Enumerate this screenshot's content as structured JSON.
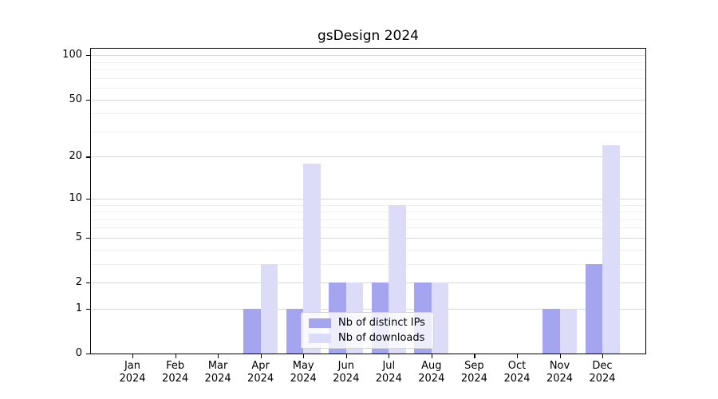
{
  "chart_data": {
    "type": "bar",
    "title": "gsDesign 2024",
    "months": [
      "Jan",
      "Feb",
      "Mar",
      "Apr",
      "May",
      "Jun",
      "Jul",
      "Aug",
      "Sep",
      "Oct",
      "Nov",
      "Dec"
    ],
    "year": "2024",
    "x_categories": [
      "Jan 2024",
      "Feb 2024",
      "Mar 2024",
      "Apr 2024",
      "May 2024",
      "Jun 2024",
      "Jul 2024",
      "Aug 2024",
      "Sep 2024",
      "Oct 2024",
      "Nov 2024",
      "Dec 2024"
    ],
    "series": [
      {
        "name": "Nb of distinct IPs",
        "color": "#a4a4ef",
        "values": [
          0,
          0,
          0,
          1,
          1,
          2,
          2,
          2,
          0,
          0,
          1,
          3
        ]
      },
      {
        "name": "Nb of downloads",
        "color": "#dcdcf9",
        "values": [
          0,
          0,
          0,
          3,
          18,
          2,
          9,
          2,
          0,
          0,
          1,
          24
        ]
      }
    ],
    "y_scale": "log1p",
    "y_ticks_major": [
      0,
      1,
      2,
      5,
      10,
      20,
      50,
      100
    ],
    "y_ticks_minor": [
      3,
      4,
      6,
      7,
      8,
      9,
      30,
      40,
      60,
      70,
      80,
      90
    ],
    "ylim": [
      0,
      111
    ],
    "grid": "horizontal",
    "legend_position": "inside bottom-center",
    "colors": {
      "grid_major": "#d8d8d8",
      "grid_minor": "#f0f0f0",
      "spine": "#000000",
      "background": "#ffffff"
    }
  }
}
